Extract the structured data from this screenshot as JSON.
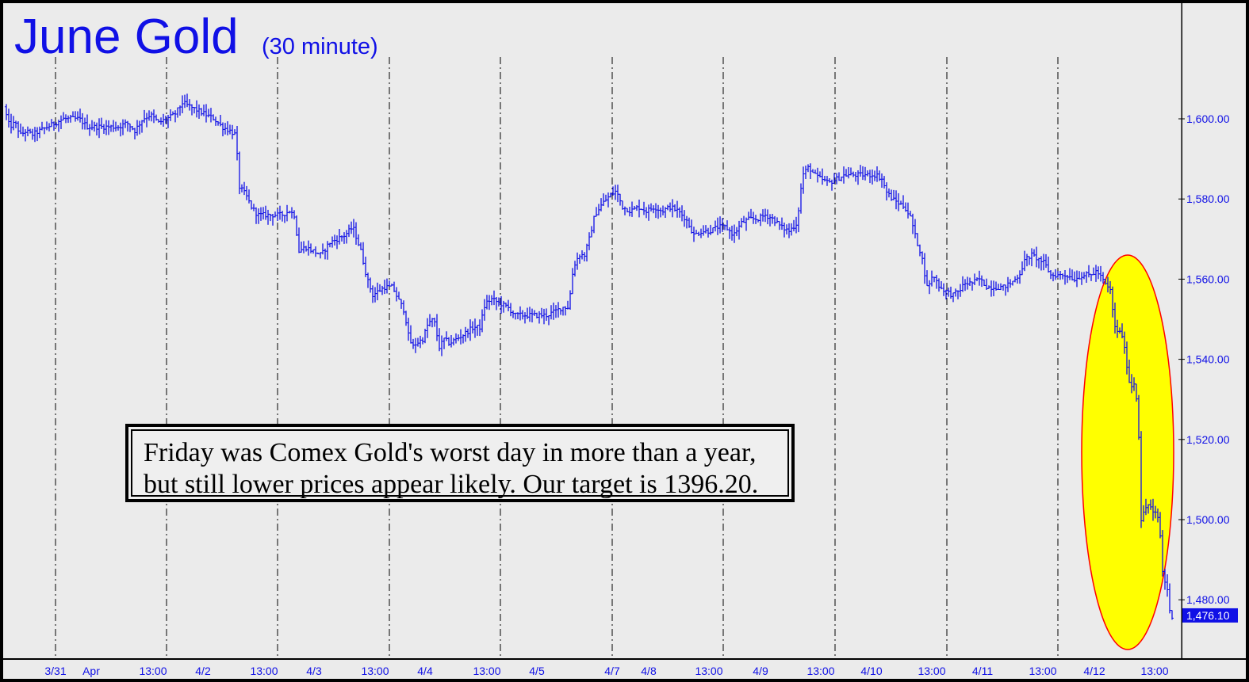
{
  "chart_data": {
    "type": "bar",
    "title": "June Gold",
    "subtitle": "(30 minute)",
    "ylim": [
      1463,
      1632
    ],
    "grid": "vertical dashed session dividers",
    "y_ticks": [
      1600,
      1580,
      1560,
      1540,
      1520,
      1500,
      1480
    ],
    "y_tick_labels": [
      "1,600.00",
      "1,580.00",
      "1,560.00",
      "1,540.00",
      "1,520.00",
      "1,500.00",
      "1,480.00"
    ],
    "x_tick_labels": [
      "3/31",
      "Apr",
      "13:00",
      "4/2",
      "13:00",
      "4/3",
      "13:00",
      "4/4",
      "13:00",
      "4/5",
      "4/7",
      "4/8",
      "13:00",
      "4/9",
      "13:00",
      "4/10",
      "13:00",
      "4/11",
      "13:00",
      "4/12",
      "13:00"
    ],
    "last_price": 1476.1,
    "last_price_label": "1,476.10",
    "series": [
      {
        "points": [
          [
            0,
            1603
          ],
          [
            7,
            1598
          ],
          [
            14,
            1599
          ],
          [
            21,
            1596
          ],
          [
            28,
            1597
          ],
          [
            35,
            1596
          ],
          [
            45,
            1597
          ],
          [
            55,
            1598
          ],
          [
            65,
            1599
          ],
          [
            75,
            1600
          ],
          [
            85,
            1600
          ],
          [
            95,
            1600
          ],
          [
            105,
            1598
          ],
          [
            115,
            1598
          ],
          [
            125,
            1598
          ],
          [
            135,
            1598
          ],
          [
            145,
            1598
          ],
          [
            155,
            1599
          ],
          [
            165,
            1597
          ],
          [
            175,
            1600
          ],
          [
            185,
            1601
          ],
          [
            195,
            1599
          ],
          [
            205,
            1600
          ],
          [
            215,
            1601
          ],
          [
            225,
            1604
          ],
          [
            235,
            1603
          ],
          [
            245,
            1602
          ],
          [
            255,
            1601
          ],
          [
            265,
            1600
          ],
          [
            275,
            1598
          ],
          [
            285,
            1597
          ],
          [
            292,
            1596
          ],
          [
            297,
            1583
          ],
          [
            305,
            1581
          ],
          [
            312,
            1578
          ],
          [
            320,
            1576
          ],
          [
            330,
            1576
          ],
          [
            340,
            1576
          ],
          [
            350,
            1576
          ],
          [
            360,
            1577
          ],
          [
            366,
            1576
          ],
          [
            372,
            1567
          ],
          [
            380,
            1568
          ],
          [
            390,
            1567
          ],
          [
            400,
            1566
          ],
          [
            410,
            1569
          ],
          [
            420,
            1570
          ],
          [
            430,
            1571
          ],
          [
            440,
            1573
          ],
          [
            450,
            1567
          ],
          [
            458,
            1560
          ],
          [
            465,
            1556
          ],
          [
            472,
            1557
          ],
          [
            480,
            1558
          ],
          [
            490,
            1558
          ],
          [
            497,
            1555
          ],
          [
            505,
            1552
          ],
          [
            510,
            1546
          ],
          [
            515,
            1543
          ],
          [
            520,
            1544
          ],
          [
            528,
            1545
          ],
          [
            535,
            1549
          ],
          [
            542,
            1550
          ],
          [
            549,
            1543
          ],
          [
            555,
            1545
          ],
          [
            562,
            1544
          ],
          [
            570,
            1545
          ],
          [
            578,
            1546
          ],
          [
            585,
            1547
          ],
          [
            592,
            1548
          ],
          [
            600,
            1548
          ],
          [
            607,
            1554
          ],
          [
            615,
            1555
          ],
          [
            625,
            1554
          ],
          [
            635,
            1553
          ],
          [
            645,
            1551
          ],
          [
            655,
            1551
          ],
          [
            665,
            1551
          ],
          [
            675,
            1551
          ],
          [
            685,
            1551
          ],
          [
            695,
            1552
          ],
          [
            705,
            1553
          ],
          [
            712,
            1553
          ],
          [
            718,
            1563
          ],
          [
            725,
            1566
          ],
          [
            732,
            1566
          ],
          [
            738,
            1570
          ],
          [
            745,
            1576
          ],
          [
            755,
            1579
          ],
          [
            765,
            1581
          ],
          [
            772,
            1582
          ],
          [
            780,
            1578
          ],
          [
            790,
            1577
          ],
          [
            800,
            1578
          ],
          [
            810,
            1577
          ],
          [
            820,
            1578
          ],
          [
            830,
            1577
          ],
          [
            840,
            1578
          ],
          [
            850,
            1577
          ],
          [
            860,
            1575
          ],
          [
            870,
            1571
          ],
          [
            880,
            1572
          ],
          [
            890,
            1572
          ],
          [
            900,
            1573
          ],
          [
            910,
            1573
          ],
          [
            920,
            1571
          ],
          [
            930,
            1574
          ],
          [
            940,
            1575
          ],
          [
            950,
            1575
          ],
          [
            960,
            1576
          ],
          [
            970,
            1575
          ],
          [
            980,
            1573
          ],
          [
            990,
            1572
          ],
          [
            1000,
            1574
          ],
          [
            1007,
            1586
          ],
          [
            1015,
            1588
          ],
          [
            1022,
            1586
          ],
          [
            1030,
            1585
          ],
          [
            1040,
            1584
          ],
          [
            1050,
            1585
          ],
          [
            1060,
            1586
          ],
          [
            1070,
            1586
          ],
          [
            1080,
            1586
          ],
          [
            1090,
            1586
          ],
          [
            1100,
            1586
          ],
          [
            1107,
            1585
          ],
          [
            1112,
            1582
          ],
          [
            1120,
            1580
          ],
          [
            1128,
            1579
          ],
          [
            1136,
            1578
          ],
          [
            1144,
            1575
          ],
          [
            1150,
            1570
          ],
          [
            1157,
            1566
          ],
          [
            1164,
            1558
          ],
          [
            1172,
            1561
          ],
          [
            1180,
            1558
          ],
          [
            1188,
            1557
          ],
          [
            1196,
            1556
          ],
          [
            1204,
            1557
          ],
          [
            1212,
            1559
          ],
          [
            1220,
            1559
          ],
          [
            1230,
            1560
          ],
          [
            1240,
            1558
          ],
          [
            1250,
            1558
          ],
          [
            1260,
            1558
          ],
          [
            1270,
            1559
          ],
          [
            1280,
            1561
          ],
          [
            1288,
            1565
          ],
          [
            1296,
            1566
          ],
          [
            1304,
            1565
          ],
          [
            1312,
            1564
          ],
          [
            1320,
            1561
          ],
          [
            1330,
            1561
          ],
          [
            1340,
            1561
          ],
          [
            1350,
            1560
          ],
          [
            1360,
            1561
          ],
          [
            1370,
            1561
          ],
          [
            1378,
            1562
          ],
          [
            1385,
            1560
          ],
          [
            1391,
            1558
          ],
          [
            1396,
            1557
          ],
          [
            1400,
            1548
          ],
          [
            1405,
            1547
          ],
          [
            1410,
            1546
          ],
          [
            1415,
            1540
          ],
          [
            1420,
            1533
          ],
          [
            1425,
            1534
          ],
          [
            1430,
            1528
          ],
          [
            1434,
            1500
          ],
          [
            1438,
            1502
          ],
          [
            1442,
            1504
          ],
          [
            1446,
            1503
          ],
          [
            1450,
            1501
          ],
          [
            1454,
            1502
          ],
          [
            1458,
            1496
          ],
          [
            1462,
            1484
          ],
          [
            1466,
            1485
          ],
          [
            1469,
            1478
          ],
          [
            1471,
            1476
          ]
        ]
      }
    ],
    "annotation": {
      "line1": "Friday was Comex Gold's worst day in more than a year,",
      "line2": "but still lower prices appear likely. Our target is 1396.20."
    },
    "highlight": "yellow ellipse around final session decline",
    "colors": {
      "background": "#ebebeb",
      "price": "#1010e6",
      "axis_text": "#1010e6",
      "highlight_fill": "#ffff00",
      "highlight_stroke": "#ff0000",
      "last_price_bg": "#1010e6",
      "last_price_text": "#ffffff"
    }
  }
}
